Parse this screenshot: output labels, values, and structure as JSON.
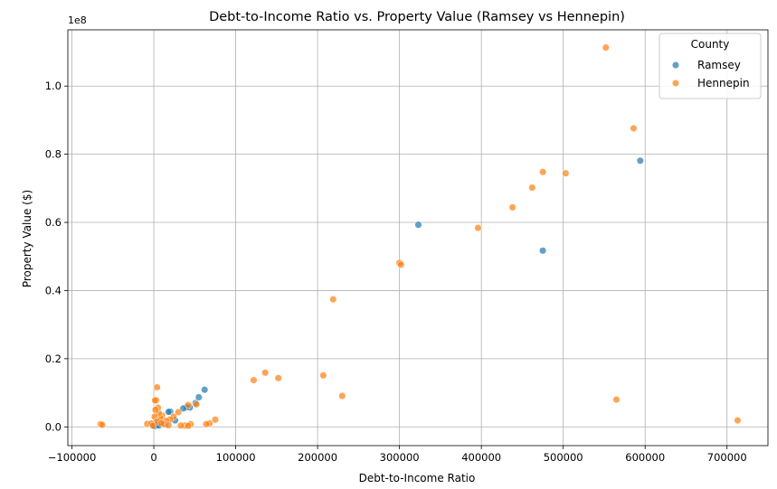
{
  "chart_data": {
    "type": "scatter",
    "title": "Debt-to-Income Ratio vs. Property Value (Ramsey vs Hennepin)",
    "xlabel": "Debt-to-Income Ratio",
    "ylabel": "Property Value ($)",
    "y_offset_label": "1e8",
    "xlim": [
      -105000,
      750000
    ],
    "ylim": [
      -0.055,
      1.165
    ],
    "x_ticks": [
      -100000,
      0,
      100000,
      200000,
      300000,
      400000,
      500000,
      600000,
      700000
    ],
    "x_tick_labels": [
      "−100000",
      "0",
      "100000",
      "200000",
      "300000",
      "400000",
      "500000",
      "600000",
      "700000"
    ],
    "y_ticks": [
      0.0,
      0.2,
      0.4,
      0.6,
      0.8,
      1.0
    ],
    "y_tick_labels": [
      "0.0",
      "0.2",
      "0.4",
      "0.6",
      "0.8",
      "1.0"
    ],
    "grid": true,
    "legend": {
      "title": "County",
      "placement": "top-right"
    },
    "series": [
      {
        "name": "Ramsey",
        "color": "#1f77b4",
        "points": [
          [
            594000,
            0.781
          ],
          [
            475000,
            0.517
          ],
          [
            323000,
            0.593
          ],
          [
            62000,
            0.109
          ],
          [
            55000,
            0.087
          ],
          [
            51000,
            0.07
          ],
          [
            44000,
            0.057
          ],
          [
            40000,
            0.058
          ],
          [
            36000,
            0.054
          ],
          [
            20000,
            0.045
          ],
          [
            18000,
            0.044
          ],
          [
            26000,
            0.019
          ],
          [
            12000,
            0.01
          ],
          [
            8000,
            0.012
          ],
          [
            5000,
            0.015
          ],
          [
            3000,
            0.008
          ],
          [
            2000,
            0.005
          ],
          [
            1000,
            0.003
          ],
          [
            500,
            0.002
          ],
          [
            4000,
            0.006
          ],
          [
            6000,
            0.004
          ],
          [
            14000,
            0.007
          ]
        ]
      },
      {
        "name": "Hennepin",
        "color": "#ff7f0e",
        "points": [
          [
            552000,
            1.113
          ],
          [
            586000,
            0.876
          ],
          [
            475000,
            0.748
          ],
          [
            503000,
            0.744
          ],
          [
            462000,
            0.702
          ],
          [
            438000,
            0.644
          ],
          [
            396000,
            0.584
          ],
          [
            300000,
            0.481
          ],
          [
            302000,
            0.476
          ],
          [
            219000,
            0.374
          ],
          [
            136000,
            0.159
          ],
          [
            152000,
            0.143
          ],
          [
            122000,
            0.137
          ],
          [
            207000,
            0.151
          ],
          [
            230000,
            0.091
          ],
          [
            565000,
            0.08
          ],
          [
            713000,
            0.019
          ],
          [
            75000,
            0.021
          ],
          [
            68000,
            0.01
          ],
          [
            64000,
            0.008
          ],
          [
            52000,
            0.066
          ],
          [
            42000,
            0.064
          ],
          [
            45000,
            0.008
          ],
          [
            38000,
            0.004
          ],
          [
            30000,
            0.043
          ],
          [
            24000,
            0.03
          ],
          [
            20000,
            0.022
          ],
          [
            15000,
            0.018
          ],
          [
            10000,
            0.034
          ],
          [
            8000,
            0.025
          ],
          [
            6000,
            0.04
          ],
          [
            5000,
            0.056
          ],
          [
            4000,
            0.116
          ],
          [
            3000,
            0.078
          ],
          [
            1500,
            0.078
          ],
          [
            2000,
            0.05
          ],
          [
            1000,
            0.03
          ],
          [
            3500,
            0.015
          ],
          [
            12000,
            0.008
          ],
          [
            18000,
            0.005
          ],
          [
            -8000,
            0.009
          ],
          [
            -3000,
            0.01
          ],
          [
            -65000,
            0.008
          ],
          [
            -63000,
            0.006
          ],
          [
            33000,
            0.004
          ],
          [
            42000,
            0.003
          ],
          [
            -1000,
            0.004
          ],
          [
            9000,
            0.011
          ]
        ]
      }
    ]
  }
}
